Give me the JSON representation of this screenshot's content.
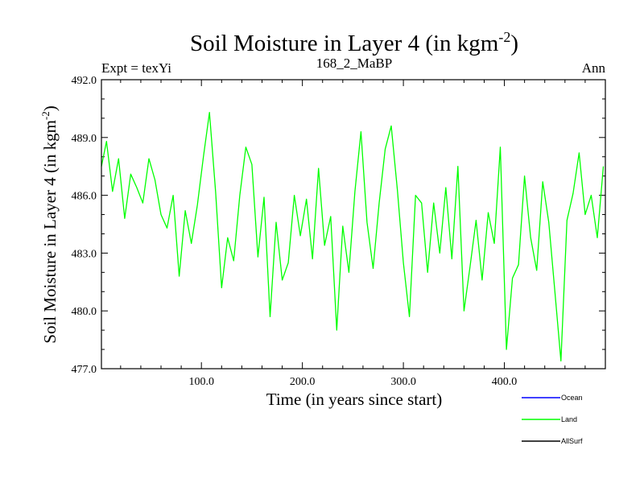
{
  "chart_data": {
    "type": "line",
    "title": "Soil Moisture in Layer 4 (in kgm",
    "title_superscript": "-2",
    "title_close": ")",
    "subtitle_left": "Expt = texYi",
    "subtitle_center": "168_2_MaBP",
    "subtitle_right": "Ann",
    "xlabel": "Time (in years since start)",
    "ylabel": "Soil Moisture in Layer 4 (in kgm",
    "ylabel_superscript": "-2",
    "ylabel_close": ")",
    "xlim": [
      1,
      500
    ],
    "ylim": [
      477.0,
      492.0
    ],
    "x_ticks": [
      100,
      200,
      300,
      400
    ],
    "x_tick_labels": [
      "100.0",
      "200.0",
      "300.0",
      "400.0"
    ],
    "y_ticks": [
      477,
      480,
      483,
      486,
      489,
      492
    ],
    "y_tick_labels": [
      "477.0",
      "480.0",
      "483.0",
      "486.0",
      "489.0",
      "492.0"
    ],
    "legend_position": "bottom-right",
    "series": [
      {
        "name": "Ocean",
        "color": "#0000ff",
        "values": []
      },
      {
        "name": "Land",
        "color": "#00ff00",
        "x": [
          1,
          6,
          12,
          18,
          24,
          30,
          36,
          42,
          48,
          54,
          60,
          66,
          72,
          78,
          84,
          90,
          96,
          102,
          108,
          114,
          120,
          126,
          132,
          138,
          144,
          150,
          156,
          162,
          168,
          174,
          180,
          186,
          192,
          198,
          204,
          210,
          216,
          222,
          228,
          234,
          240,
          246,
          252,
          258,
          264,
          270,
          276,
          282,
          288,
          294,
          300,
          306,
          312,
          318,
          324,
          330,
          336,
          342,
          348,
          354,
          360,
          366,
          372,
          378,
          384,
          390,
          396,
          402,
          408,
          414,
          420,
          426,
          432,
          438,
          444,
          450,
          456,
          462,
          468,
          474,
          480,
          486,
          492,
          498
        ],
        "values": [
          487.5,
          488.8,
          486.2,
          487.9,
          484.8,
          487.1,
          486.4,
          485.6,
          487.9,
          486.8,
          485.0,
          484.3,
          486.0,
          481.8,
          485.2,
          483.5,
          485.5,
          488.0,
          490.3,
          486.2,
          481.2,
          483.8,
          482.6,
          486.0,
          488.5,
          487.6,
          482.8,
          485.9,
          479.7,
          484.6,
          481.6,
          482.5,
          486.0,
          483.9,
          485.8,
          482.7,
          487.4,
          483.4,
          484.9,
          479.0,
          484.4,
          482.0,
          486.2,
          489.3,
          484.6,
          482.2,
          485.6,
          488.4,
          489.6,
          486.3,
          482.5,
          479.7,
          486.0,
          485.6,
          482.0,
          485.6,
          483.0,
          486.4,
          482.7,
          487.5,
          480.0,
          482.3,
          484.7,
          481.6,
          485.1,
          483.5,
          488.5,
          478.0,
          481.7,
          482.4,
          487.0,
          483.8,
          482.1,
          486.7,
          484.6,
          481.0,
          477.4,
          484.7,
          486.1,
          488.2,
          485.0,
          486.0,
          483.8,
          487.5
        ]
      },
      {
        "name": "AllSurf",
        "color": "#000000",
        "values": []
      }
    ]
  }
}
